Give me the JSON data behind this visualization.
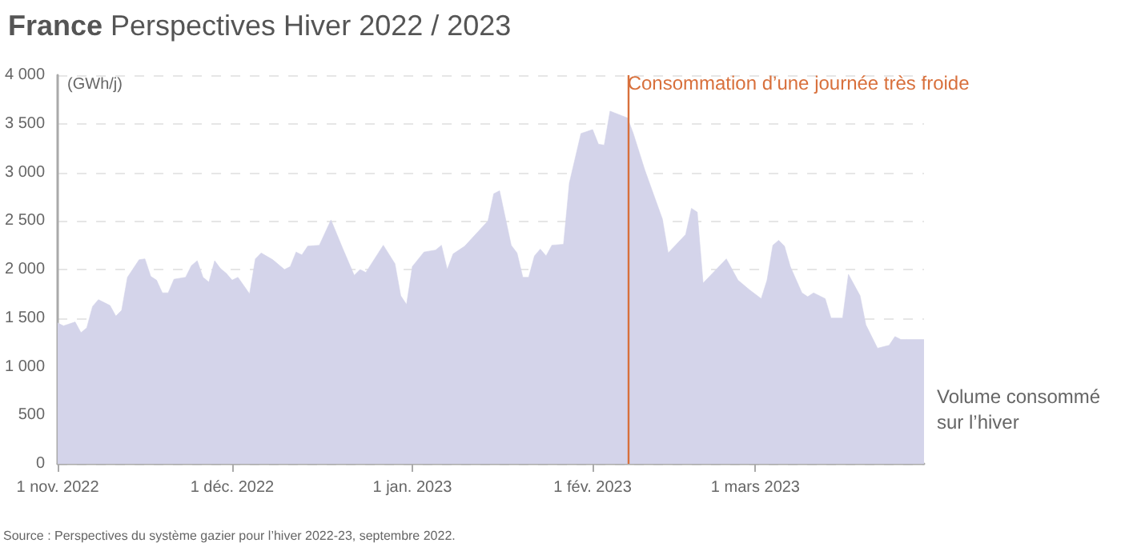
{
  "chart_data": {
    "type": "area",
    "title": "France",
    "subtitle": "Perspectives Hiver 2022 / 2023",
    "ylabel": "(GWh/j)",
    "annotations": [
      "Source : Perspectives du système gazier pour l’hiver 2022-23, septembre 2022."
    ],
    "x": [
      "2022-11-01",
      "2022-11-02",
      "2022-11-04",
      "2022-11-05",
      "2022-11-06",
      "2022-11-07",
      "2022-11-08",
      "2022-11-09",
      "2022-11-10",
      "2022-11-11",
      "2022-11-12",
      "2022-11-13",
      "2022-11-15",
      "2022-11-16",
      "2022-11-17",
      "2022-11-18",
      "2022-11-19",
      "2022-11-20",
      "2022-11-21",
      "2022-11-23",
      "2022-11-24",
      "2022-11-25",
      "2022-11-26",
      "2022-11-27",
      "2022-11-28",
      "2022-11-29",
      "2022-11-30",
      "2022-12-01",
      "2022-12-02",
      "2022-12-04",
      "2022-12-05",
      "2022-12-06",
      "2022-12-08",
      "2022-12-10",
      "2022-12-11",
      "2022-12-12",
      "2022-12-13",
      "2022-12-14",
      "2022-12-16",
      "2022-12-18",
      "2022-12-20",
      "2022-12-22",
      "2022-12-23",
      "2022-12-24",
      "2022-12-27",
      "2022-12-29",
      "2022-12-30",
      "2022-12-31",
      "2023-01-01",
      "2023-01-03",
      "2023-01-05",
      "2023-01-06",
      "2023-01-07",
      "2023-01-08",
      "2023-01-10",
      "2023-01-14",
      "2023-01-15",
      "2023-01-16",
      "2023-01-18",
      "2023-01-19",
      "2023-01-20",
      "2023-01-21",
      "2023-01-22",
      "2023-01-23",
      "2023-01-24",
      "2023-01-25",
      "2023-01-27",
      "2023-01-28",
      "2023-01-30",
      "2023-02-01",
      "2023-02-02",
      "2023-02-03",
      "2023-02-04",
      "2023-02-07",
      "2023-02-08",
      "2023-02-10",
      "2023-02-13",
      "2023-02-14",
      "2023-02-17",
      "2023-02-18",
      "2023-02-19",
      "2023-02-20",
      "2023-02-24",
      "2023-02-26",
      "2023-02-28",
      "2023-03-02",
      "2023-03-03",
      "2023-03-04",
      "2023-03-05",
      "2023-03-06",
      "2023-03-07",
      "2023-03-09",
      "2023-03-10",
      "2023-03-11",
      "2023-03-13",
      "2023-03-14",
      "2023-03-16",
      "2023-03-17",
      "2023-03-19",
      "2023-03-20",
      "2023-03-22",
      "2023-03-24",
      "2023-03-25",
      "2023-03-26",
      "2023-03-27",
      "2023-03-30"
    ],
    "series": [
      {
        "name": "Volume consommé sur l’hiver",
        "color": "#d4d4ea",
        "values": [
          1450,
          1420,
          1460,
          1350,
          1400,
          1620,
          1690,
          1660,
          1630,
          1520,
          1580,
          1920,
          2100,
          2110,
          1930,
          1890,
          1760,
          1760,
          1900,
          1920,
          2040,
          2090,
          1920,
          1870,
          2090,
          2010,
          1960,
          1890,
          1920,
          1750,
          2110,
          2170,
          2100,
          2000,
          2030,
          2180,
          2150,
          2240,
          2250,
          2510,
          2220,
          1940,
          2000,
          1970,
          2250,
          2060,
          1730,
          1640,
          2030,
          2180,
          2200,
          2250,
          2000,
          2160,
          2240,
          2500,
          2780,
          2810,
          2250,
          2170,
          1920,
          1920,
          2140,
          2210,
          2140,
          2250,
          2260,
          2890,
          3400,
          3440,
          3290,
          3280,
          3630,
          3560,
          3400,
          3020,
          2520,
          2170,
          2360,
          2630,
          2590,
          1860,
          2110,
          1890,
          1790,
          1700,
          1890,
          2250,
          2300,
          2240,
          2030,
          1760,
          1720,
          1760,
          1700,
          1500,
          1500,
          1950,
          1730,
          1430,
          1190,
          1220,
          1310,
          1280,
          1280,
          1280
        ]
      }
    ],
    "xlim": [
      "2022-11-01",
      "2023-03-30"
    ],
    "xticks": [
      {
        "value": "2022-11-01",
        "label": "1 nov. 2022"
      },
      {
        "value": "2022-12-01",
        "label": "1 déc. 2022"
      },
      {
        "value": "2023-01-01",
        "label": "1 jan. 2023"
      },
      {
        "value": "2023-02-01",
        "label": "1 fév. 2023"
      },
      {
        "value": "2023-03-01",
        "label": "1 mars 2023"
      }
    ],
    "ylim": [
      0,
      4000
    ],
    "yticks": [
      0,
      {
        "value": 500,
        "label": "500"
      },
      {
        "value": 1000,
        "label": "1 000"
      },
      {
        "value": 1500,
        "label": "1 500"
      },
      {
        "value": 2000,
        "label": "2 000"
      },
      {
        "value": 2500,
        "label": "2 500"
      },
      {
        "value": 3000,
        "label": "3 000"
      },
      {
        "value": 3500,
        "label": "3 500"
      },
      {
        "value": 4000,
        "label": "4 000"
      }
    ],
    "ref_lines": [
      {
        "axis": "x",
        "value": "2023-02-07",
        "label": "Consommation d’une journée très froide",
        "color": "#d8703c"
      }
    ],
    "grid": "y",
    "legend": false,
    "marker": "none"
  }
}
